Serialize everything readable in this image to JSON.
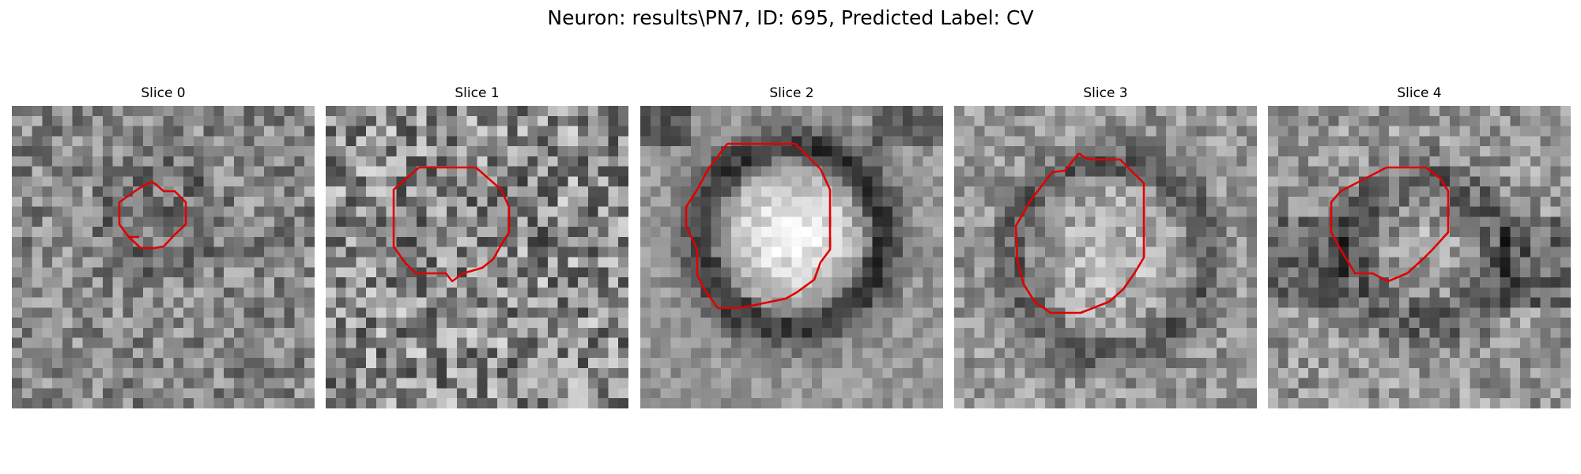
{
  "figure": {
    "title": "Neuron: results\\PN7, ID: 695, Predicted Label: CV"
  },
  "panels": [
    {
      "title": "Slice 0"
    },
    {
      "title": "Slice 1"
    },
    {
      "title": "Slice 2"
    },
    {
      "title": "Slice 3"
    },
    {
      "title": "Slice 4"
    }
  ],
  "colors": {
    "contour": "#e00000"
  }
}
